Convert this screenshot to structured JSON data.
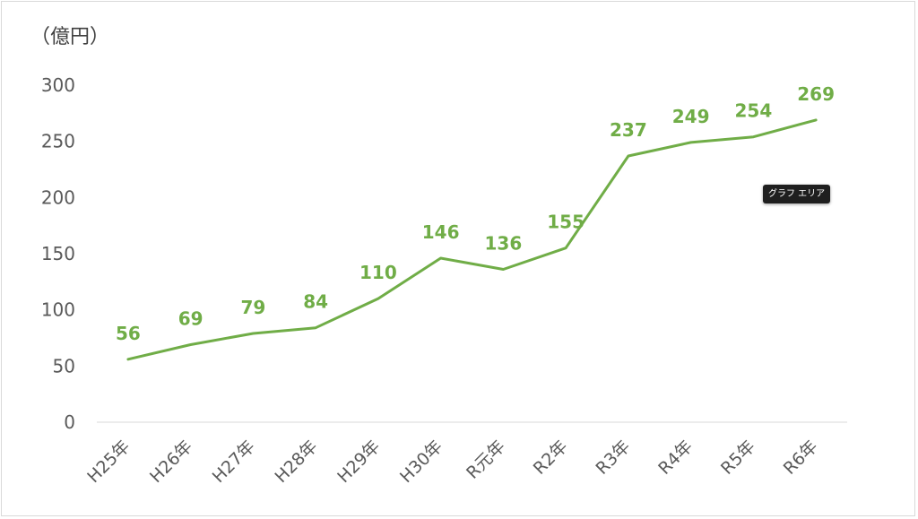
{
  "chart_data": {
    "type": "line",
    "unit_label": "（億円）",
    "categories": [
      "H25年",
      "H26年",
      "H27年",
      "H28年",
      "H29年",
      "H30年",
      "R元年",
      "R2年",
      "R3年",
      "R4年",
      "R5年",
      "R6年"
    ],
    "values": [
      56,
      69,
      79,
      84,
      110,
      146,
      136,
      155,
      237,
      249,
      254,
      269
    ],
    "ylim": [
      0,
      300
    ],
    "yticks": [
      0,
      50,
      100,
      150,
      200,
      250,
      300
    ],
    "grid": false,
    "legend": "none",
    "data_labels": true
  },
  "colors": {
    "series": "#70ad47",
    "axis": "#d9d9d9",
    "text": "#595959"
  },
  "tooltip": {
    "text": "グラフ エリア"
  }
}
